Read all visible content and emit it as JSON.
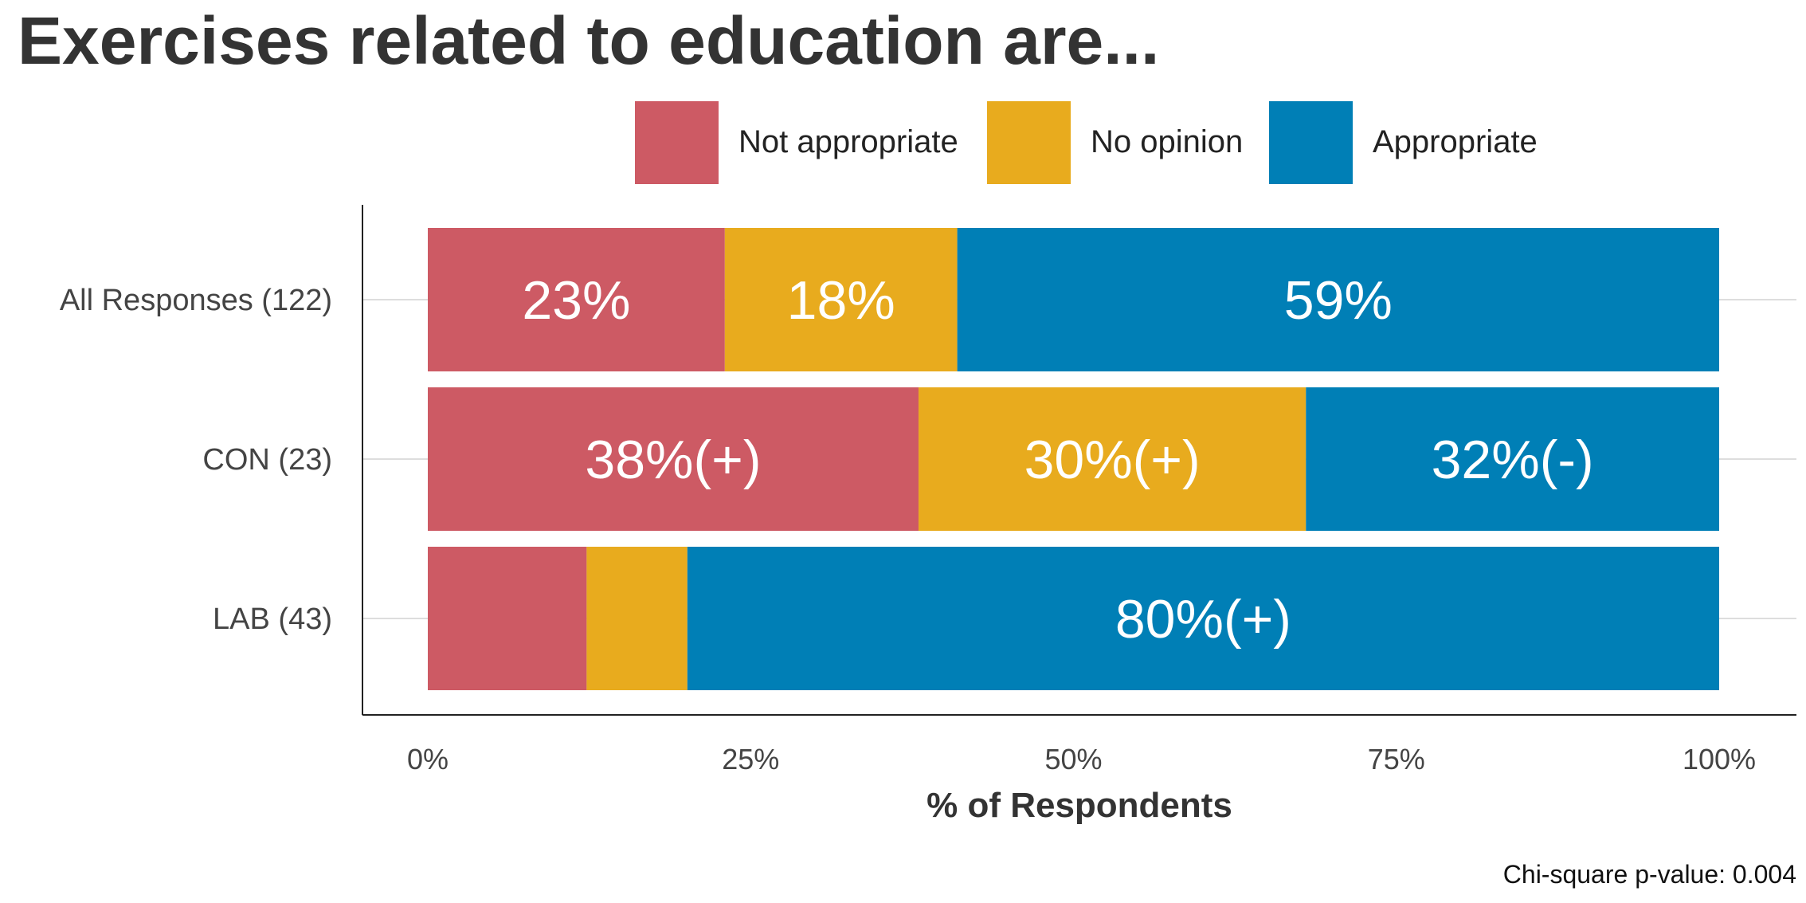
{
  "chart_data": {
    "type": "bar",
    "orientation": "horizontal",
    "stacked": true,
    "title": "Exercises related to education are...",
    "xlabel": "% of Respondents",
    "xlim": [
      0,
      100
    ],
    "ticks": [
      "0%",
      "25%",
      "50%",
      "75%",
      "100%"
    ],
    "tick_values": [
      0,
      25,
      50,
      75,
      100
    ],
    "grid": true,
    "legend_position": "top",
    "categories": [
      "All Responses (122)",
      "CON (23)",
      "LAB (43)"
    ],
    "series": [
      {
        "name": "Not appropriate",
        "color": "#CD5A64",
        "values": [
          23,
          38,
          12.3
        ],
        "labels": [
          "23%",
          "38%(+)",
          ""
        ]
      },
      {
        "name": "No opinion",
        "color": "#E8AB1E",
        "values": [
          18,
          30,
          7.8
        ],
        "labels": [
          "18%",
          "30%(+)",
          ""
        ]
      },
      {
        "name": "Appropriate",
        "color": "#007FB6",
        "values": [
          59,
          32,
          79.9
        ],
        "labels": [
          "59%",
          "32%(-)",
          "80%(+)"
        ]
      }
    ],
    "annotation": "Chi-square p-value: 0.004"
  }
}
